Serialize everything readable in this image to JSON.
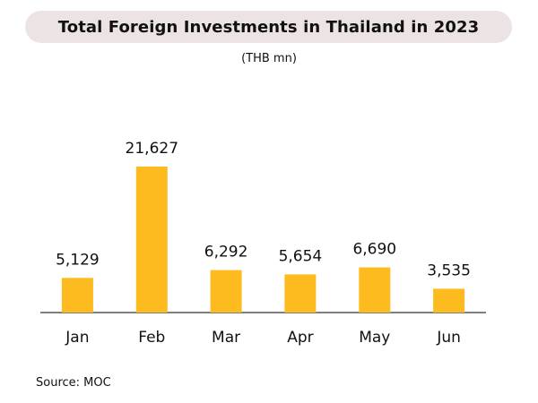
{
  "title": "Total Foreign Investments in Thailand in 2023",
  "subtitle": "(THB mn)",
  "source": "Source: MOC",
  "colors": {
    "bar": "#FDBB1F",
    "title_bg": "#ECE4E4",
    "axis": "#333333"
  },
  "chart_data": {
    "type": "bar",
    "title": "Total Foreign Investments in Thailand in 2023",
    "subtitle": "(THB mn)",
    "categories": [
      "Jan",
      "Feb",
      "Mar",
      "Apr",
      "May",
      "Jun"
    ],
    "values": [
      5129,
      21627,
      6292,
      5654,
      6690,
      3535
    ],
    "value_labels": [
      "5,129",
      "21,627",
      "6,292",
      "5,654",
      "6,690",
      "3,535"
    ],
    "xlabel": "",
    "ylabel": "",
    "grid": false,
    "legend": "none"
  }
}
